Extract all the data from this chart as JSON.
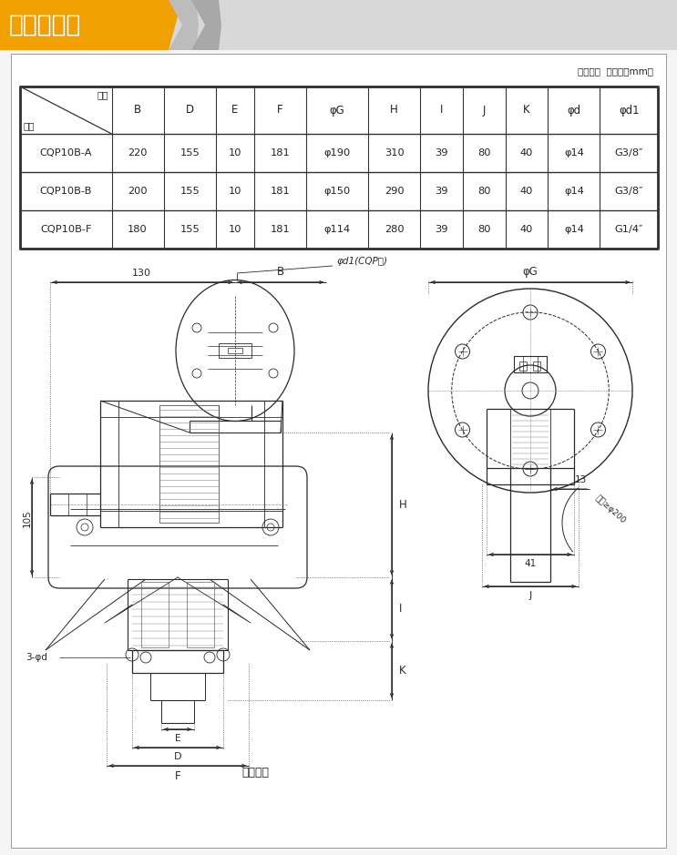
{
  "title": "盘式制动器",
  "table_note": "（表二）  单位：（mm）",
  "figure_note": "（图一）",
  "header_cols": [
    "型号",
    "B",
    "D",
    "E",
    "F",
    "φG",
    "H",
    "I",
    "J",
    "K",
    "φd",
    "φd1"
  ],
  "header_label_top": "尺寸",
  "header_label_bot": "型号",
  "data_rows": [
    [
      "CQP10B-A",
      "220",
      "155",
      "10",
      "181",
      "φ190",
      "310",
      "39",
      "80",
      "40",
      "φ14",
      "G3/8″"
    ],
    [
      "CQP10B-B",
      "200",
      "155",
      "10",
      "181",
      "φ150",
      "290",
      "39",
      "80",
      "40",
      "φ14",
      "G3/8″"
    ],
    [
      "CQP10B-F",
      "180",
      "155",
      "10",
      "181",
      "φ114",
      "280",
      "39",
      "80",
      "40",
      "φ14",
      "G1/4″"
    ]
  ],
  "orange_color": "#f0a000",
  "gray_color": "#d0d0d0",
  "line_color": "#2a2a2a",
  "bg_color": "#f5f5f5",
  "white_color": "#ffffff",
  "dim_130": "130",
  "dim_B": "B",
  "dim_phid1_label": "φd1(CQP型)",
  "dim_phiG": "φG",
  "dim_H": "H",
  "dim_I": "I",
  "dim_K": "K",
  "dim_105": "105",
  "dim_3phid": "3-φd",
  "dim_E": "E",
  "dim_D": "D",
  "dim_F": "F",
  "dim_13": "13",
  "dim_41": "41",
  "dim_J": "J",
  "dim_axis_note": "轴径≥φ200",
  "fig_note": "（图一）"
}
